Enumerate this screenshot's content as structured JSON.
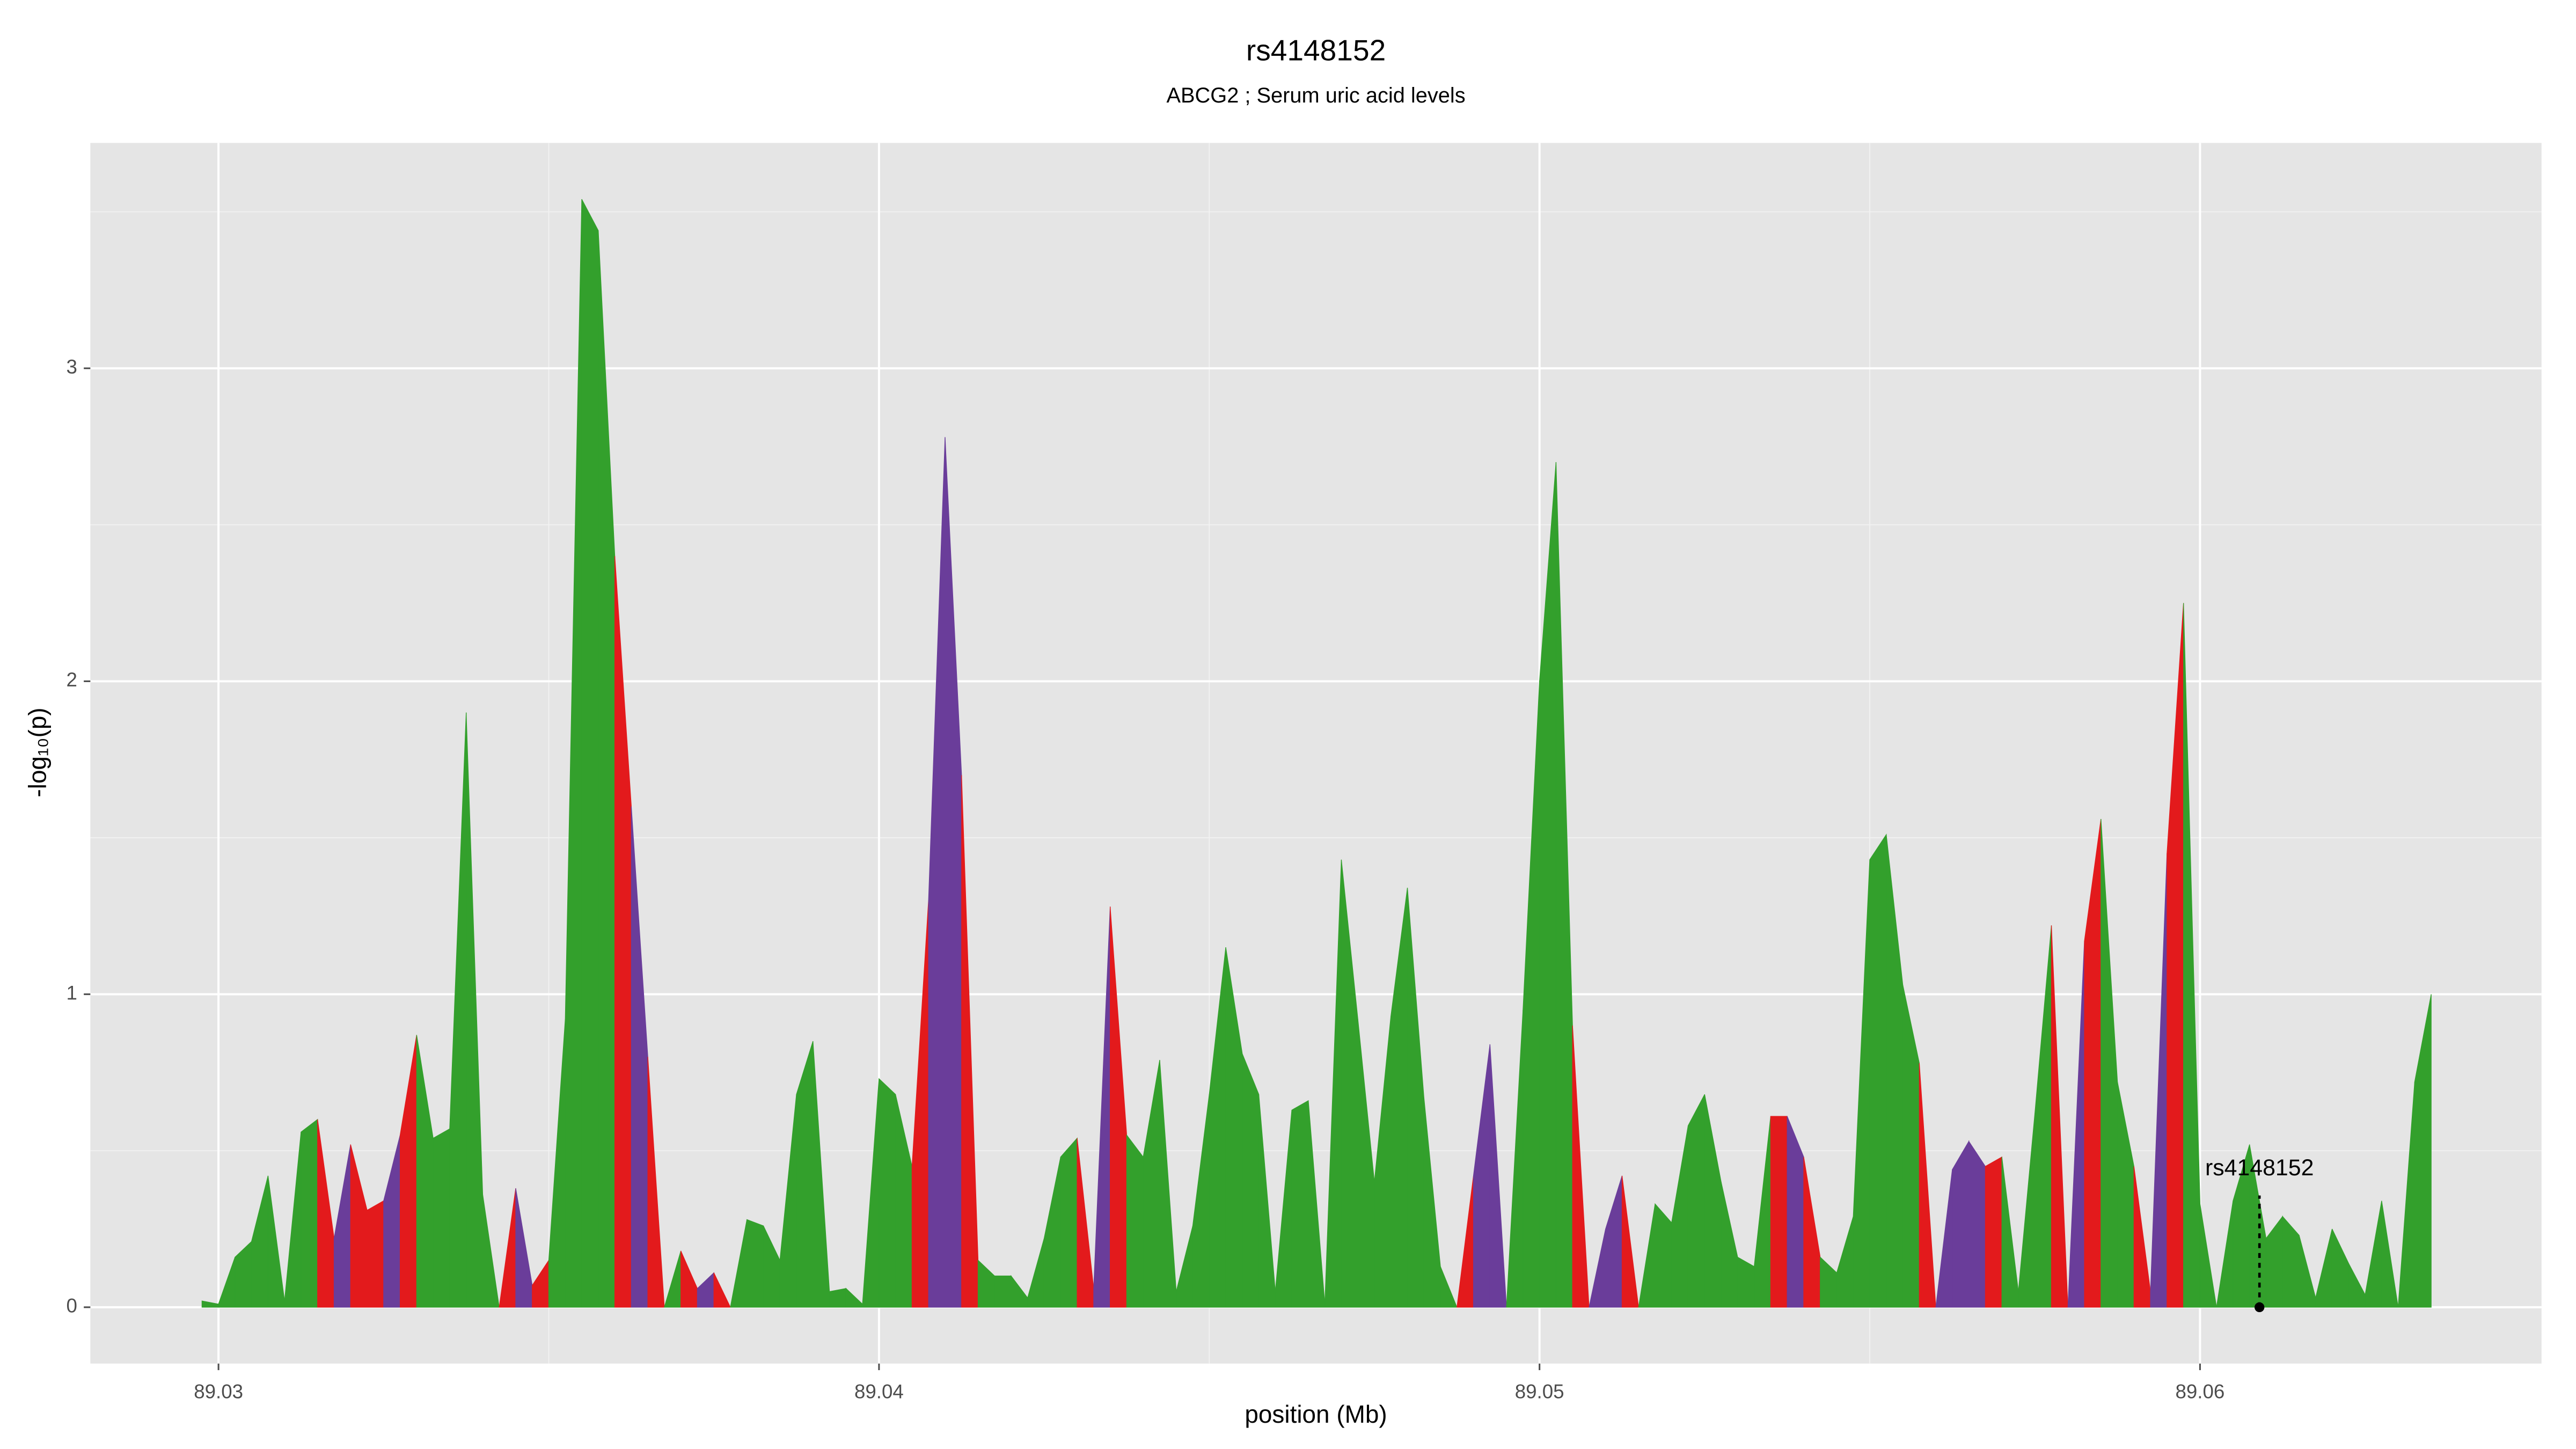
{
  "chart_data": {
    "type": "area",
    "title": "rs4148152",
    "subtitle": "ABCG2 ; Serum uric acid levels",
    "x_label": "position (Mb)",
    "y_label": "-log₁₀(p)",
    "x": [
      89.02975,
      89.03,
      89.03025,
      89.0305,
      89.03075,
      89.031,
      89.03125,
      89.0315,
      89.03175,
      89.032,
      89.03225,
      89.0325,
      89.03275,
      89.033,
      89.03325,
      89.0335,
      89.03375,
      89.034,
      89.03425,
      89.0345,
      89.03475,
      89.035,
      89.03525,
      89.0355,
      89.03575,
      89.036,
      89.03625,
      89.0365,
      89.03675,
      89.037,
      89.03725,
      89.0375,
      89.03775,
      89.038,
      89.03825,
      89.0385,
      89.03875,
      89.039,
      89.03925,
      89.0395,
      89.03975,
      89.04,
      89.04025,
      89.0405,
      89.04075,
      89.041,
      89.04125,
      89.0415,
      89.04175,
      89.042,
      89.04225,
      89.0425,
      89.04275,
      89.043,
      89.04325,
      89.0435,
      89.04375,
      89.044,
      89.04425,
      89.0445,
      89.04475,
      89.045,
      89.04525,
      89.0455,
      89.04575,
      89.046,
      89.04625,
      89.0465,
      89.04675,
      89.047,
      89.04725,
      89.0475,
      89.04775,
      89.048,
      89.04825,
      89.0485,
      89.04875,
      89.049,
      89.04925,
      89.0495,
      89.04975,
      89.05,
      89.05025,
      89.0505,
      89.05075,
      89.051,
      89.05125,
      89.0515,
      89.05175,
      89.052,
      89.05225,
      89.0525,
      89.05275,
      89.053,
      89.05325,
      89.0535,
      89.05375,
      89.054,
      89.05425,
      89.0545,
      89.05475,
      89.055,
      89.05525,
      89.0555,
      89.05575,
      89.056,
      89.05625,
      89.0565,
      89.05675,
      89.057,
      89.05725,
      89.0575,
      89.05775,
      89.058,
      89.05825,
      89.0585,
      89.05875,
      89.059,
      89.05925,
      89.0595,
      89.05975,
      89.06,
      89.06025,
      89.0605,
      89.06075,
      89.061,
      89.06125,
      89.0615,
      89.06175,
      89.062,
      89.06225,
      89.0625,
      89.06275,
      89.063,
      89.06325,
      89.0635
    ],
    "values": [
      0.02,
      0.01,
      0.16,
      0.21,
      0.42,
      0.02,
      0.56,
      0.6,
      0.22,
      0.52,
      0.31,
      0.34,
      0.55,
      0.87,
      0.54,
      0.57,
      1.9,
      0.36,
      0.0,
      0.38,
      0.07,
      0.15,
      0.92,
      3.54,
      3.44,
      2.4,
      1.6,
      0.8,
      0.0,
      0.18,
      0.06,
      0.11,
      0.0,
      0.28,
      0.26,
      0.15,
      0.68,
      0.85,
      0.05,
      0.06,
      0.01,
      0.73,
      0.68,
      0.45,
      1.3,
      2.78,
      1.7,
      0.15,
      0.1,
      0.1,
      0.03,
      0.22,
      0.48,
      0.54,
      0.06,
      1.28,
      0.55,
      0.48,
      0.79,
      0.05,
      0.26,
      0.68,
      1.15,
      0.81,
      0.68,
      0.05,
      0.63,
      0.66,
      0.01,
      1.43,
      0.92,
      0.4,
      0.93,
      1.34,
      0.67,
      0.13,
      0.0,
      0.42,
      0.84,
      0.0,
      0.95,
      2.0,
      2.7,
      0.9,
      0.0,
      0.25,
      0.42,
      0.0,
      0.33,
      0.27,
      0.58,
      0.68,
      0.4,
      0.16,
      0.13,
      0.61,
      0.61,
      0.48,
      0.16,
      0.11,
      0.29,
      1.43,
      1.51,
      1.03,
      0.78,
      0.0,
      0.44,
      0.53,
      0.45,
      0.48,
      0.05,
      0.62,
      1.22,
      0.0,
      1.17,
      1.56,
      0.72,
      0.45,
      0.05,
      1.45,
      2.25,
      0.33,
      0.0,
      0.34,
      0.52,
      0.22,
      0.29,
      0.23,
      0.03,
      0.25,
      0.14,
      0.04,
      0.34,
      0.0,
      0.72,
      1.0
    ],
    "palette": [
      "#33a02c",
      "#e31a1c",
      "#6a3d9a"
    ],
    "color_index": [
      0,
      0,
      0,
      0,
      0,
      0,
      0,
      1,
      2,
      1,
      1,
      2,
      1,
      0,
      0,
      0,
      0,
      0,
      1,
      2,
      1,
      0,
      0,
      0,
      0,
      1,
      2,
      1,
      0,
      1,
      2,
      1,
      0,
      0,
      0,
      0,
      0,
      0,
      0,
      0,
      0,
      0,
      0,
      1,
      2,
      2,
      1,
      0,
      0,
      0,
      0,
      0,
      0,
      1,
      2,
      1,
      0,
      0,
      0,
      0,
      0,
      0,
      0,
      0,
      0,
      0,
      0,
      0,
      0,
      0,
      0,
      0,
      0,
      0,
      0,
      0,
      1,
      2,
      2,
      0,
      0,
      0,
      0,
      1,
      2,
      2,
      1,
      0,
      0,
      0,
      0,
      0,
      0,
      0,
      0,
      1,
      2,
      1,
      0,
      0,
      0,
      0,
      0,
      0,
      1,
      2,
      2,
      2,
      1,
      0,
      0,
      0,
      1,
      2,
      1,
      0,
      0,
      1,
      2,
      1,
      0,
      0,
      0,
      0,
      0,
      0,
      0,
      0,
      0,
      0,
      0,
      0,
      0,
      0,
      0,
      0
    ],
    "annotation": {
      "label": "rs4148152",
      "x": 89.0609,
      "y": 0
    },
    "xlim": [
      89.02806,
      89.06517
    ],
    "ylim": [
      -0.18,
      3.72
    ],
    "xticks": [
      89.03,
      89.04,
      89.05,
      89.06
    ],
    "yticks": [
      0,
      1,
      2,
      3
    ],
    "minor_xticks": [
      89.035,
      89.045,
      89.055
    ],
    "minor_yticks": [
      0.5,
      1.5,
      2.5,
      3.5
    ],
    "grid": true
  }
}
